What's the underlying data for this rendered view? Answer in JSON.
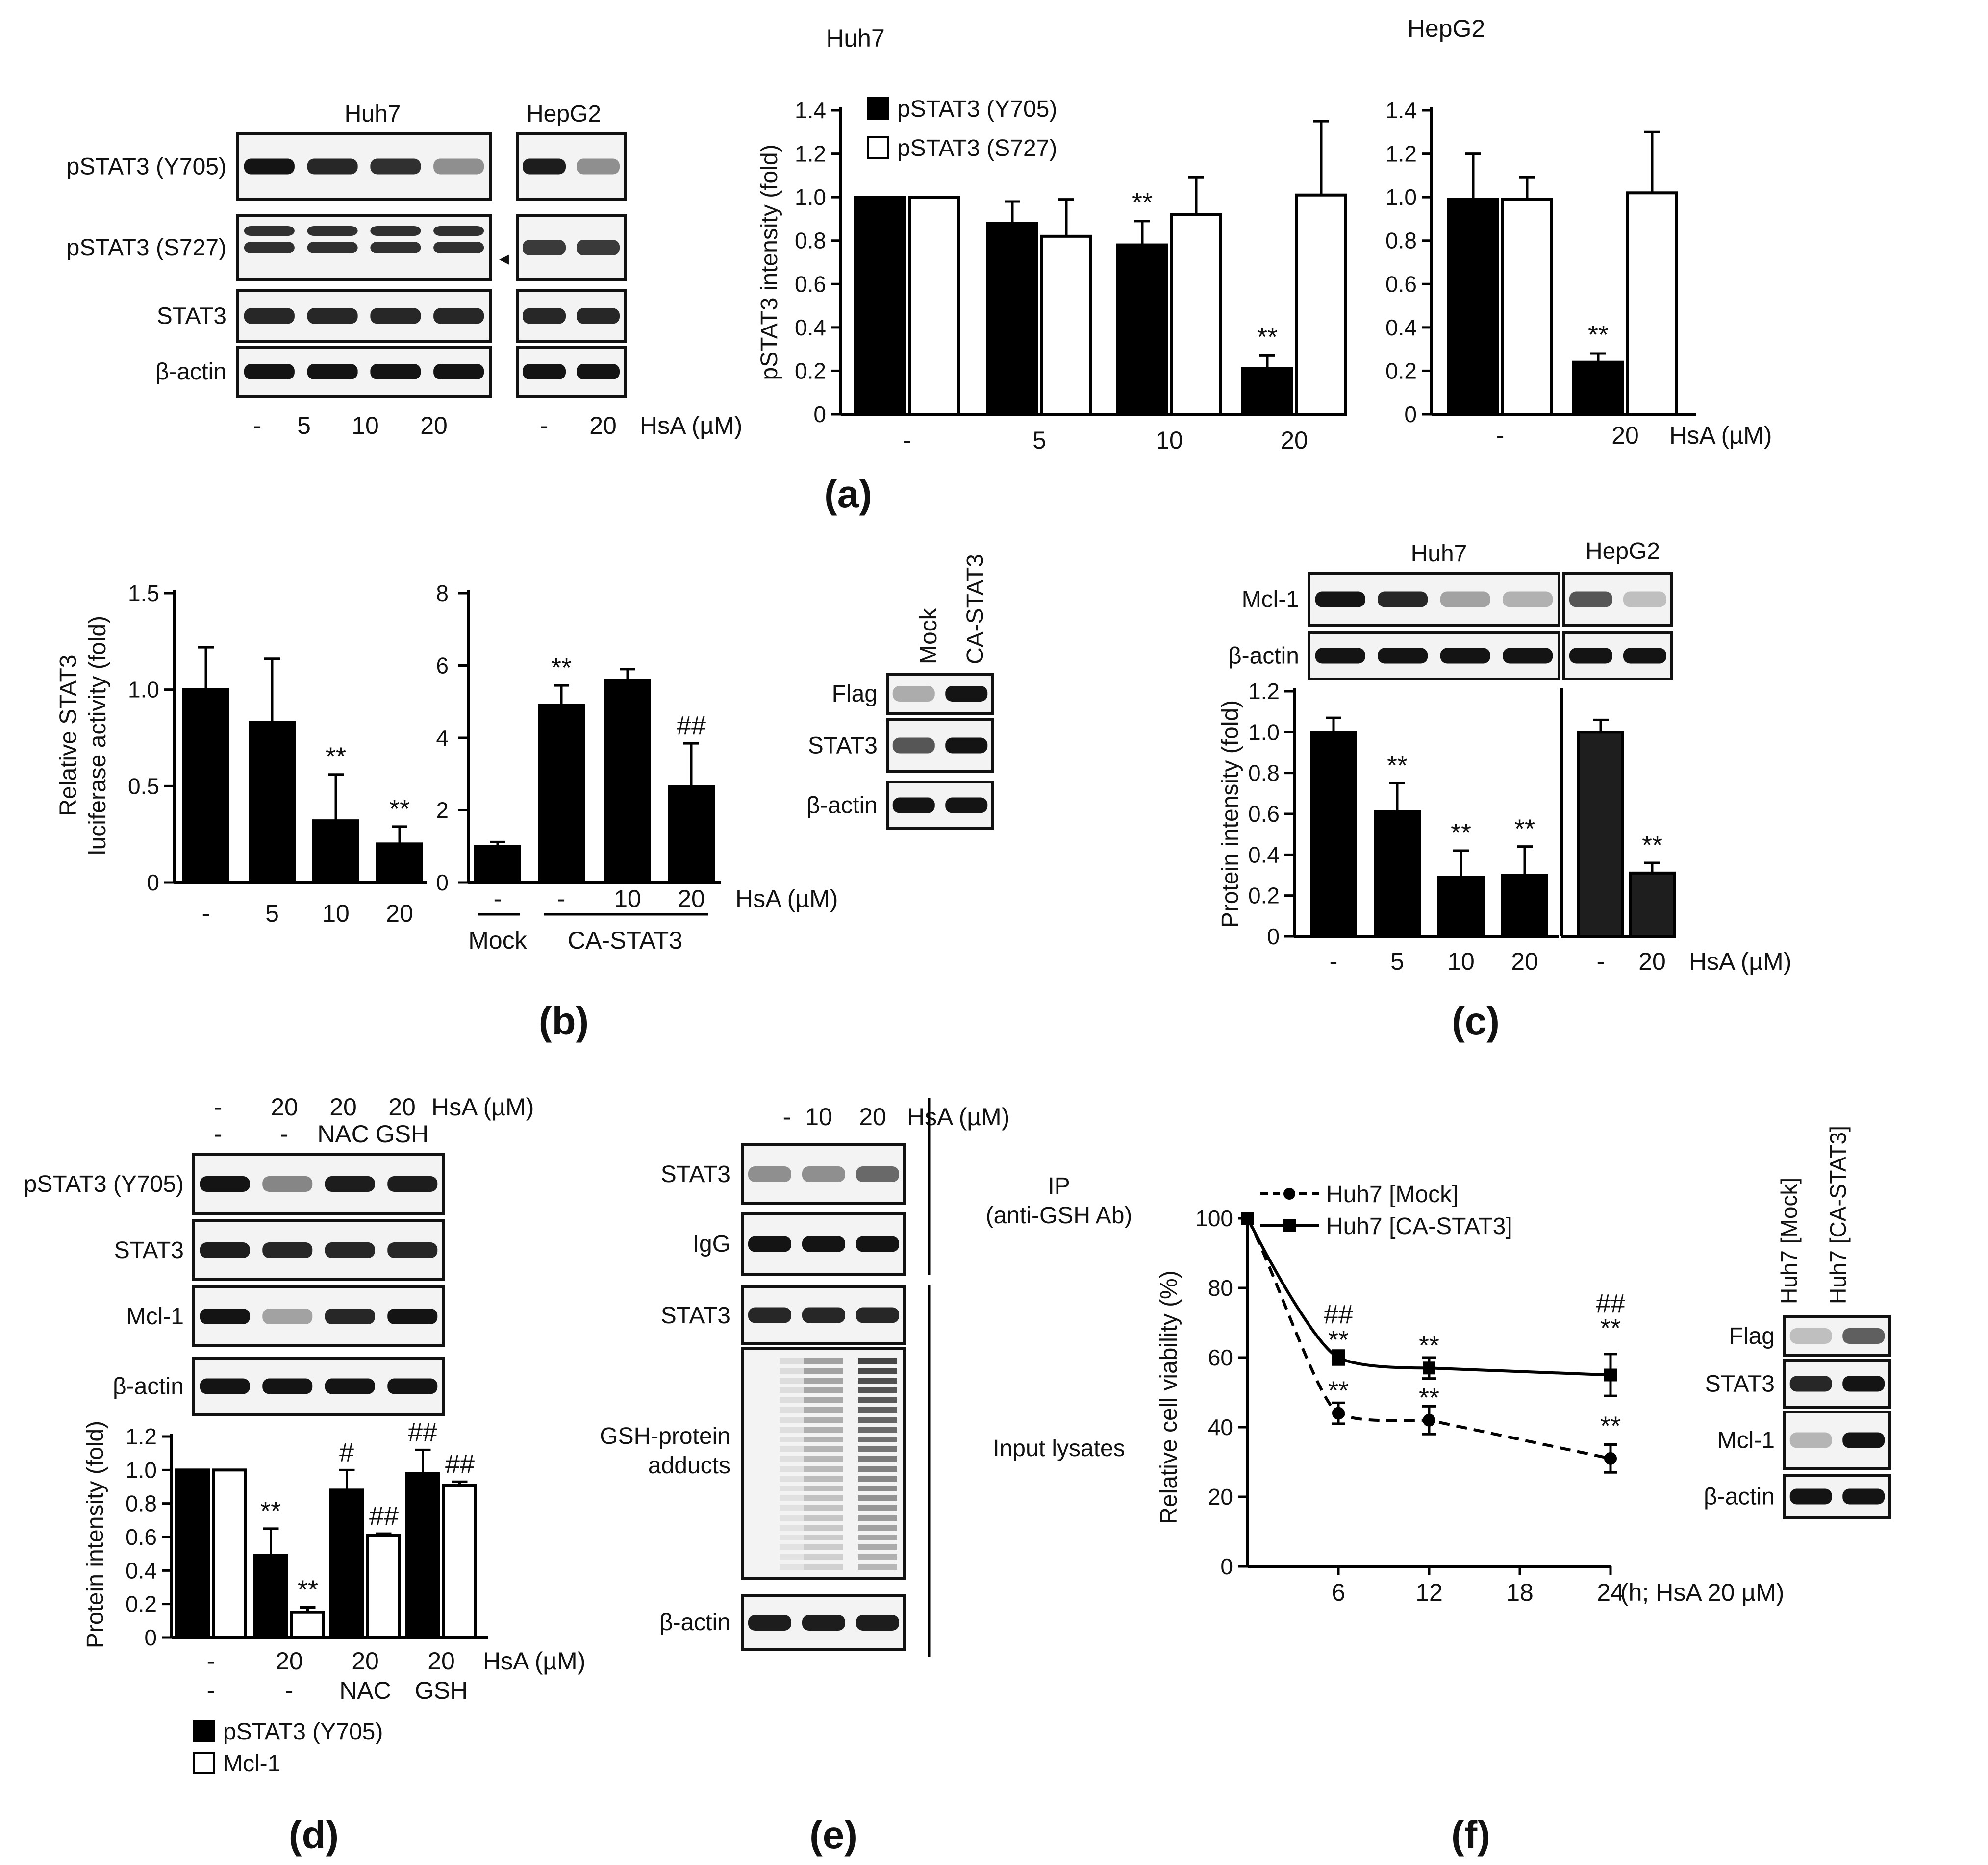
{
  "panel_letters": {
    "a": "(a)",
    "b": "(b)",
    "c": "(c)",
    "d": "(d)",
    "e": "(e)",
    "f": "(f)"
  },
  "treatment_unit": "HsA (µM)",
  "sig": {
    "star": "**",
    "hash2": "##",
    "hash1": "#"
  },
  "blot_a": {
    "huh7_title": "Huh7",
    "hepg2_title": "HepG2",
    "rows": [
      "pSTAT3 (Y705)",
      "pSTAT3 (S727)",
      "STAT3",
      "β-actin"
    ],
    "huh7_lanes": [
      "-",
      "5",
      "10",
      "20"
    ],
    "hepg2_lanes": [
      "-",
      "20"
    ],
    "arrow": "◂"
  },
  "blot_b": {
    "lanes": [
      "Mock",
      "CA-STAT3"
    ],
    "rows": [
      "Flag",
      "STAT3",
      "β-actin"
    ]
  },
  "blot_c": {
    "huh7_title": "Huh7",
    "hepg2_title": "HepG2",
    "rows": [
      "Mcl-1",
      "β-actin"
    ]
  },
  "blot_d": {
    "row1": [
      "-",
      "20",
      "20",
      "20"
    ],
    "row2": [
      "-",
      "-",
      "NAC",
      "GSH"
    ],
    "rows": [
      "pSTAT3 (Y705)",
      "STAT3",
      "Mcl-1",
      "β-actin"
    ]
  },
  "blot_e": {
    "lanes": [
      "-",
      "10",
      "20"
    ],
    "rows": [
      "STAT3",
      "IgG",
      "STAT3",
      "GSH-protein",
      "adducts",
      "β-actin"
    ],
    "ip_label": "IP",
    "ip_ab": "(anti-GSH Ab)",
    "input_label": "Input lysates"
  },
  "blot_f": {
    "lanes": [
      "Huh7 [Mock]",
      "Huh7 [CA-STAT3]"
    ],
    "rows": [
      "Flag",
      "STAT3",
      "Mcl-1",
      "β-actin"
    ]
  },
  "chart_data": [
    {
      "id": "a_huh7",
      "type": "bar",
      "title": "Huh7",
      "ylabel": "pSTAT3 intensity (fold)",
      "categories": [
        "-",
        "5",
        "10",
        "20"
      ],
      "ylim": [
        0,
        1.4
      ],
      "yticks": [
        "0",
        "0.2",
        "0.4",
        "0.6",
        "0.8",
        "1.0",
        "1.2",
        "1.4"
      ],
      "series": [
        {
          "name": "pSTAT3 (Y705)",
          "values": [
            1.0,
            0.88,
            0.78,
            0.21
          ],
          "errors": [
            0,
            0.1,
            0.11,
            0.06
          ],
          "fill": "#000000"
        },
        {
          "name": "pSTAT3 (S727)",
          "values": [
            1.0,
            0.82,
            0.92,
            1.01
          ],
          "errors": [
            0,
            0.17,
            0.17,
            0.34
          ],
          "fill": "#ffffff"
        }
      ],
      "significance": [
        {
          "category": "10",
          "series": "pSTAT3 (Y705)",
          "mark": "**"
        },
        {
          "category": "20",
          "series": "pSTAT3 (Y705)",
          "mark": "**"
        }
      ],
      "legend": "top-left"
    },
    {
      "id": "a_hepg2",
      "type": "bar",
      "title": "HepG2",
      "categories": [
        "-",
        "20"
      ],
      "ylim": [
        0,
        1.4
      ],
      "yticks": [
        "0",
        "0.2",
        "0.4",
        "0.6",
        "0.8",
        "1.0",
        "1.2",
        "1.4"
      ],
      "series": [
        {
          "name": "pSTAT3 (Y705)",
          "values": [
            0.99,
            0.24
          ],
          "errors": [
            0.21,
            0.04
          ],
          "fill": "#000000"
        },
        {
          "name": "pSTAT3 (S727)",
          "values": [
            0.99,
            1.02
          ],
          "errors": [
            0.1,
            0.28
          ],
          "fill": "#ffffff"
        }
      ],
      "significance": [
        {
          "category": "20",
          "series": "pSTAT3 (Y705)",
          "mark": "**"
        }
      ]
    },
    {
      "id": "b_luc",
      "type": "bar",
      "ylabel": "Relative STAT3 luciferase activity (fold)",
      "ylabel_lines": [
        "Relative STAT3",
        "luciferase activity (fold)"
      ],
      "categories": [
        "-",
        "5",
        "10",
        "20"
      ],
      "ylim": [
        0,
        1.5
      ],
      "yticks": [
        "0",
        "0.5",
        "1.0",
        "1.5"
      ],
      "series": [
        {
          "values": [
            1.0,
            0.83,
            0.32,
            0.2
          ],
          "errors": [
            0.22,
            0.33,
            0.24,
            0.09
          ],
          "fill": "#000000"
        }
      ],
      "significance": [
        {
          "category": "10",
          "mark": "**"
        },
        {
          "category": "20",
          "mark": "**"
        }
      ]
    },
    {
      "id": "b_ca",
      "type": "bar",
      "categories": [
        "-",
        "-",
        "10",
        "20"
      ],
      "groups": [
        "Mock",
        "CA-STAT3"
      ],
      "ylim": [
        0,
        8
      ],
      "yticks": [
        "0",
        "2",
        "4",
        "6",
        "8"
      ],
      "series": [
        {
          "values": [
            1.0,
            4.9,
            5.6,
            2.65
          ],
          "errors": [
            0.12,
            0.55,
            0.3,
            1.2
          ],
          "fill": "#000000"
        }
      ],
      "significance": [
        {
          "index": 1,
          "mark": "**"
        },
        {
          "index": 3,
          "mark": "##"
        }
      ]
    },
    {
      "id": "c_huh7",
      "type": "bar",
      "ylabel": "Protein intensity (fold)",
      "categories": [
        "-",
        "5",
        "10",
        "20"
      ],
      "ylim": [
        0,
        1.2
      ],
      "yticks": [
        "0",
        "0.2",
        "0.4",
        "0.6",
        "0.8",
        "1.0",
        "1.2"
      ],
      "series": [
        {
          "values": [
            1.0,
            0.61,
            0.29,
            0.3
          ],
          "errors": [
            0.07,
            0.14,
            0.13,
            0.14
          ],
          "fill": "#000000"
        }
      ],
      "significance": [
        {
          "index": 1,
          "mark": "**"
        },
        {
          "index": 2,
          "mark": "**"
        },
        {
          "index": 3,
          "mark": "**"
        }
      ]
    },
    {
      "id": "c_hepg2",
      "type": "bar",
      "categories": [
        "-",
        "20"
      ],
      "ylim": [
        0,
        1.2
      ],
      "series": [
        {
          "values": [
            1.0,
            0.31
          ],
          "errors": [
            0.06,
            0.05
          ],
          "fill": "#1e1e1e"
        }
      ],
      "significance": [
        {
          "index": 1,
          "mark": "**"
        }
      ]
    },
    {
      "id": "d_bar",
      "type": "bar",
      "ylabel": "Protein intensity (fold)",
      "categories": [
        "-",
        "20",
        "20",
        "20"
      ],
      "categories_row2": [
        "-",
        "-",
        "NAC",
        "GSH"
      ],
      "ylim": [
        0,
        1.2
      ],
      "yticks": [
        "0",
        "0.2",
        "0.4",
        "0.6",
        "0.8",
        "1.0",
        "1.2"
      ],
      "series": [
        {
          "name": "pSTAT3 (Y705)",
          "values": [
            1.0,
            0.49,
            0.88,
            0.98
          ],
          "errors": [
            0,
            0.16,
            0.12,
            0.14
          ],
          "fill": "#000000"
        },
        {
          "name": "Mcl-1",
          "values": [
            1.0,
            0.15,
            0.61,
            0.91
          ],
          "errors": [
            0,
            0.03,
            0.01,
            0.02
          ],
          "fill": "#ffffff"
        }
      ],
      "significance": [
        {
          "index": 1,
          "series": "pSTAT3 (Y705)",
          "mark": "**"
        },
        {
          "index": 1,
          "series": "Mcl-1",
          "mark": "**"
        },
        {
          "index": 2,
          "series": "pSTAT3 (Y705)",
          "mark": "#"
        },
        {
          "index": 2,
          "series": "Mcl-1",
          "mark": "##"
        },
        {
          "index": 3,
          "series": "pSTAT3 (Y705)",
          "mark": "##"
        },
        {
          "index": 3,
          "series": "Mcl-1",
          "mark": "##"
        }
      ],
      "legend": "bottom"
    },
    {
      "id": "f_line",
      "type": "line",
      "ylabel": "Relative cell viability (%)",
      "xlabel": "(h; HsA 20 µM)",
      "xticks": [
        "6",
        "12",
        "18",
        "24"
      ],
      "xlim": [
        0,
        24
      ],
      "ylim": [
        0,
        100
      ],
      "yticks": [
        "0",
        "20",
        "40",
        "60",
        "80",
        "100"
      ],
      "series": [
        {
          "name": "Huh7 [Mock]",
          "x": [
            0,
            6,
            12,
            24
          ],
          "y": [
            100,
            44,
            42,
            31
          ],
          "errors": [
            0,
            3,
            4,
            4
          ],
          "style": "dashed",
          "marker": "circle"
        },
        {
          "name": "Huh7 [CA-STAT3]",
          "x": [
            0,
            6,
            12,
            24
          ],
          "y": [
            100,
            60,
            57,
            55
          ],
          "errors": [
            0,
            2,
            3,
            6
          ],
          "style": "solid",
          "marker": "square"
        }
      ],
      "significance": [
        {
          "x": 6,
          "marks": [
            "##",
            "**",
            "**"
          ]
        },
        {
          "x": 12,
          "marks": [
            "**",
            "**"
          ]
        },
        {
          "x": 24,
          "marks": [
            "##",
            "**",
            "**"
          ]
        }
      ],
      "legend": "top"
    }
  ]
}
